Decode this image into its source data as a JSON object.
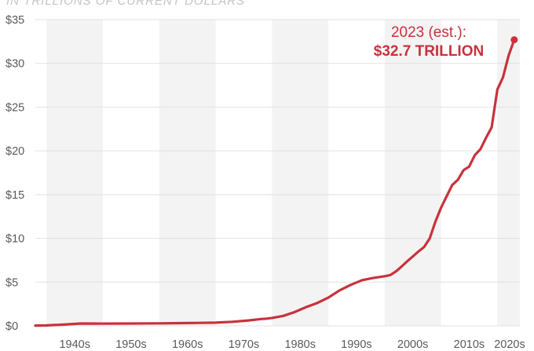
{
  "chart_data": {
    "type": "line",
    "subtitle": "IN TRILLIONS OF CURRENT DOLLARS",
    "xlabel": "",
    "ylabel": "",
    "ylim": [
      0,
      35
    ],
    "xlim": [
      1938,
      2024
    ],
    "yticks": [
      "$0",
      "$5",
      "$10",
      "$15",
      "$20",
      "$25",
      "$30",
      "$35"
    ],
    "xticks": [
      "1940s",
      "1950s",
      "1960s",
      "1970s",
      "1980s",
      "1990s",
      "2000s",
      "2010s",
      "2020s"
    ],
    "grid": true,
    "legend": "none",
    "series": [
      {
        "x": [
          1938,
          1940,
          1943,
          1946,
          1950,
          1955,
          1960,
          1965,
          1970,
          1973,
          1976,
          1978,
          1979,
          1980,
          1982,
          1984,
          1986,
          1988,
          1990,
          1992,
          1994,
          1996,
          1998,
          2000,
          2001,
          2002,
          2003,
          2004,
          2005,
          2006,
          2007,
          2008,
          2009,
          2010,
          2011,
          2012,
          2013,
          2014,
          2015,
          2016,
          2017,
          2018,
          2019,
          2020,
          2021,
          2022,
          2023
        ],
        "y": [
          0.04,
          0.05,
          0.14,
          0.27,
          0.26,
          0.27,
          0.29,
          0.32,
          0.37,
          0.47,
          0.63,
          0.78,
          0.83,
          0.91,
          1.14,
          1.57,
          2.13,
          2.6,
          3.23,
          4.06,
          4.69,
          5.22,
          5.48,
          5.67,
          5.81,
          6.23,
          6.78,
          7.38,
          7.93,
          8.51,
          9.01,
          10.0,
          11.9,
          13.5,
          14.8,
          16.1,
          16.7,
          17.8,
          18.2,
          19.5,
          20.2,
          21.5,
          22.7,
          27.0,
          28.4,
          30.9,
          32.7
        ]
      }
    ],
    "annotation": {
      "year_label": "2023 (est.):",
      "value_label": "$32.7 TRILLION",
      "x": 2023,
      "y": 32.7
    },
    "colors": {
      "line": "#c8323c",
      "band": "#f3f3f3",
      "grid": "#e2e2e2"
    }
  }
}
